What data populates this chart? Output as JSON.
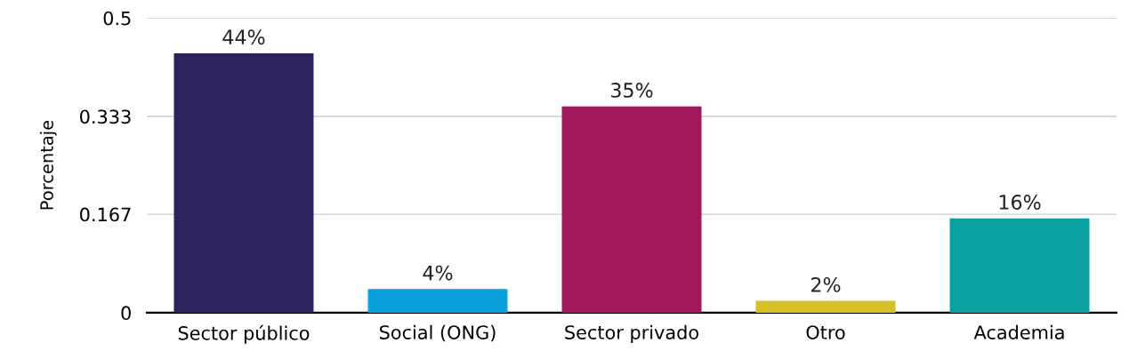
{
  "chart_data": {
    "type": "bar",
    "ylabel": "Porcentaje",
    "categories": [
      "Sector público",
      "Social (ONG)",
      "Sector privado",
      "Otro",
      "Academia"
    ],
    "values": [
      0.44,
      0.04,
      0.35,
      0.02,
      0.16
    ],
    "colors": [
      "#2a235c",
      "#0aa0dc",
      "#a0195a",
      "#d7c028",
      "#0aa0a0"
    ],
    "value_labels": [
      "44%",
      "4%",
      "35%",
      "2%",
      "16%"
    ],
    "ylim": [
      0,
      0.5
    ],
    "yticks": [
      0,
      0.167,
      0.333,
      0.5
    ],
    "grid": "y"
  }
}
